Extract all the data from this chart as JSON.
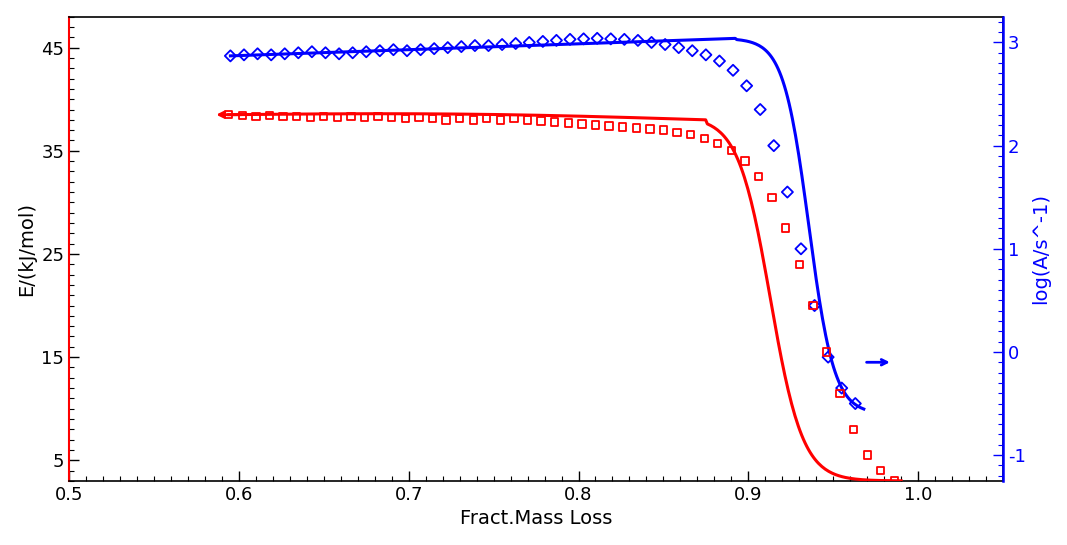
{
  "xlabel": "Fract.Mass Loss",
  "ylabel_left": "E/(kJ/mol)",
  "ylabel_right": "log(A/s^-1)",
  "xlim": [
    0.5,
    1.05
  ],
  "ylim_left": [
    3,
    48
  ],
  "ylim_right": [
    -1.25,
    3.25
  ],
  "left_yticks": [
    5,
    15,
    25,
    35,
    45
  ],
  "right_yticks": [
    -1.0,
    0.0,
    1.0,
    2.0,
    3.0
  ],
  "xticks": [
    0.5,
    0.6,
    0.7,
    0.8,
    0.9,
    1.0
  ],
  "blue_scatter_x": [
    0.595,
    0.603,
    0.611,
    0.619,
    0.627,
    0.635,
    0.643,
    0.651,
    0.659,
    0.667,
    0.675,
    0.683,
    0.691,
    0.699,
    0.707,
    0.715,
    0.723,
    0.731,
    0.739,
    0.747,
    0.755,
    0.763,
    0.771,
    0.779,
    0.787,
    0.795,
    0.803,
    0.811,
    0.819,
    0.827,
    0.835,
    0.843,
    0.851,
    0.859,
    0.867,
    0.875,
    0.883,
    0.891,
    0.899,
    0.907,
    0.915,
    0.923,
    0.931,
    0.939,
    0.947,
    0.955,
    0.963
  ],
  "blue_scatter_y": [
    44.2,
    44.3,
    44.4,
    44.3,
    44.4,
    44.5,
    44.6,
    44.5,
    44.4,
    44.5,
    44.6,
    44.7,
    44.8,
    44.7,
    44.8,
    44.9,
    45.0,
    45.1,
    45.2,
    45.2,
    45.3,
    45.4,
    45.5,
    45.6,
    45.7,
    45.8,
    45.85,
    45.9,
    45.85,
    45.8,
    45.7,
    45.5,
    45.3,
    45.0,
    44.7,
    44.3,
    43.7,
    42.8,
    41.3,
    39.0,
    35.5,
    31.0,
    25.5,
    20.0,
    15.0,
    12.0,
    10.5
  ],
  "red_scatter_x": [
    0.594,
    0.602,
    0.61,
    0.618,
    0.626,
    0.634,
    0.642,
    0.65,
    0.658,
    0.666,
    0.674,
    0.682,
    0.69,
    0.698,
    0.706,
    0.714,
    0.722,
    0.73,
    0.738,
    0.746,
    0.754,
    0.762,
    0.77,
    0.778,
    0.786,
    0.794,
    0.802,
    0.81,
    0.818,
    0.826,
    0.834,
    0.842,
    0.85,
    0.858,
    0.866,
    0.874,
    0.882,
    0.89,
    0.898,
    0.906,
    0.914,
    0.922,
    0.93,
    0.938,
    0.946,
    0.954,
    0.962,
    0.97,
    0.978,
    0.986
  ],
  "red_scatter_y": [
    38.5,
    38.4,
    38.3,
    38.4,
    38.3,
    38.3,
    38.2,
    38.3,
    38.2,
    38.3,
    38.2,
    38.3,
    38.2,
    38.1,
    38.2,
    38.1,
    38.0,
    38.1,
    38.0,
    38.1,
    38.0,
    38.1,
    38.0,
    37.9,
    37.8,
    37.7,
    37.6,
    37.5,
    37.4,
    37.3,
    37.2,
    37.1,
    37.0,
    36.8,
    36.6,
    36.2,
    35.7,
    35.0,
    34.0,
    32.5,
    30.5,
    27.5,
    24.0,
    20.0,
    15.5,
    11.5,
    8.0,
    5.5,
    4.0,
    3.0
  ],
  "bg_color": "#ffffff",
  "blue_color": "#0000ff",
  "red_color": "#ff0000"
}
